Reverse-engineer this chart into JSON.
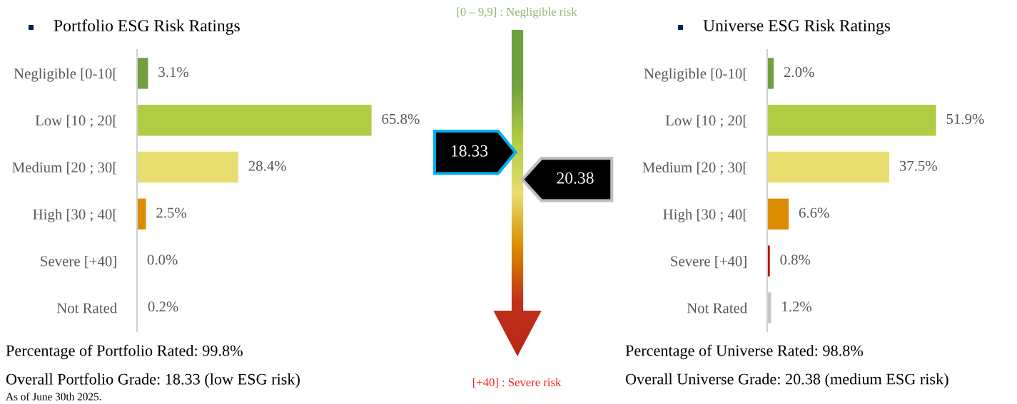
{
  "chart_data": [
    {
      "type": "bar",
      "orientation": "horizontal",
      "title": "Portfolio ESG Risk Ratings",
      "categories": [
        "Negligible [0-10[",
        "Low [10 ; 20[",
        "Medium [20 ; 30[",
        "High [30 ; 40[",
        "Severe [+40]",
        "Not Rated"
      ],
      "values": [
        3.1,
        65.8,
        28.4,
        2.5,
        0.0,
        0.2
      ],
      "colors": [
        "#70a040",
        "#b0cc44",
        "#e8de70",
        "#dc8c00",
        "#c00000",
        "#c8c8c8"
      ],
      "value_labels": [
        "3.1%",
        "65.8%",
        "28.4%",
        "2.5%",
        "0.0%",
        "0.2%"
      ],
      "tick_labels": "y",
      "annotations": [
        "Percentage of Portfolio Rated: 99.8%",
        "Overall Portfolio Grade: 18.33 (low ESG risk)",
        "As of June 30th 2025."
      ]
    },
    {
      "type": "other",
      "values": [
        18.33,
        20.38
      ],
      "colors": [
        "#00b0f0",
        "#bfbfbf"
      ],
      "data_labels": true,
      "annotations": [
        "[0 – 9,9] : Negligible risk",
        "[+40] : Severe risk"
      ]
    },
    {
      "type": "bar",
      "orientation": "horizontal",
      "title": "Universe ESG Risk Ratings",
      "categories": [
        "Negligible [0-10[",
        "Low [10 ; 20[",
        "Medium [20 ; 30[",
        "High [30 ; 40[",
        "Severe [+40]",
        "Not Rated"
      ],
      "values": [
        2.0,
        51.9,
        37.5,
        6.6,
        0.8,
        1.2
      ],
      "colors": [
        "#70a040",
        "#b0cc44",
        "#e8de70",
        "#dc8c00",
        "#c00000",
        "#c8c8c8"
      ],
      "value_labels": [
        "2.0%",
        "51.9%",
        "37.5%",
        "6.6%",
        "0.8%",
        "1.2%"
      ],
      "tick_labels": "y",
      "annotations": [
        "Percentage of Universe Rated: 98.8%",
        "Overall Universe Grade: 20.38 (medium ESG risk)"
      ]
    }
  ]
}
